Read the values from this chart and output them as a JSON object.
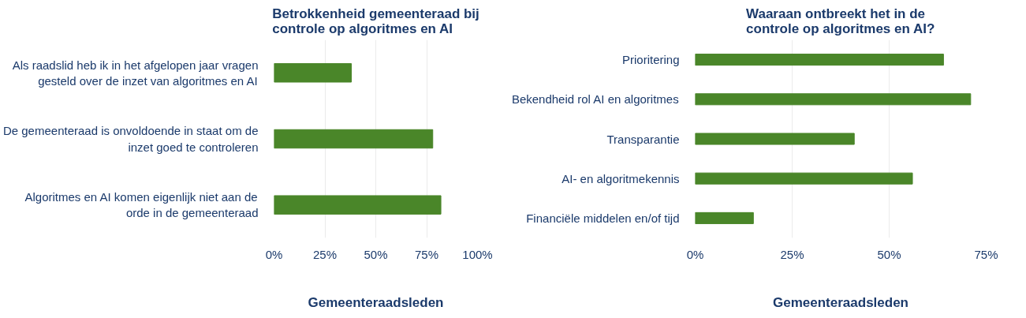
{
  "chart_data": [
    {
      "type": "bar",
      "orientation": "horizontal",
      "title": "Betrokkenheid gemeenteraad bij\ncontrole op algoritmes en AI",
      "xlabel": "Gemeenteraadsleden",
      "categories": [
        "Als raadslid heb ik in het afgelopen jaar vragen gesteld over de inzet van algoritmes en AI",
        "De gemeenteraad is onvoldoende in staat om de inzet goed te controleren",
        "Algoritmes en AI komen eigenlijk niet aan de orde in de gemeenteraad"
      ],
      "values": [
        38,
        78,
        82
      ],
      "color": "#4a8629",
      "xlim": [
        0,
        100
      ],
      "xticks": [
        {
          "value": 0,
          "label": "0%"
        },
        {
          "value": 25,
          "label": "25%"
        },
        {
          "value": 50,
          "label": "50%"
        },
        {
          "value": 75,
          "label": "75%"
        },
        {
          "value": 100,
          "label": "100%"
        }
      ],
      "grid": "x"
    },
    {
      "type": "bar",
      "orientation": "horizontal",
      "title": "Waaraan ontbreekt het in de\ncontrole op algoritmes en AI?",
      "xlabel": "Gemeenteraadsleden",
      "categories": [
        "Prioritering",
        "Bekendheid rol AI en algoritmes",
        "Transparantie",
        "AI- en algoritmekennis",
        "Financiële middelen en/of tijd"
      ],
      "values": [
        64,
        71,
        41,
        56,
        15
      ],
      "color": "#4a8629",
      "xlim": [
        0,
        75
      ],
      "xticks": [
        {
          "value": 0,
          "label": "0%"
        },
        {
          "value": 25,
          "label": "25%"
        },
        {
          "value": 50,
          "label": "50%"
        },
        {
          "value": 75,
          "label": "75%"
        }
      ],
      "grid": "x"
    }
  ]
}
